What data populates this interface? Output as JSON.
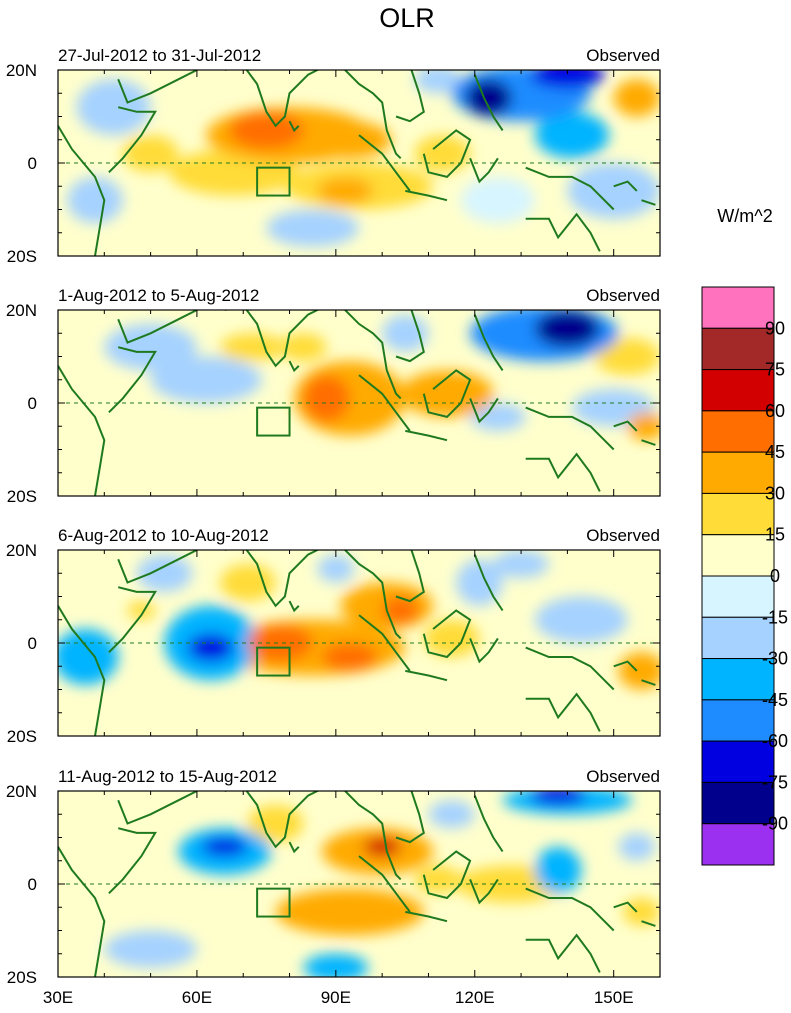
{
  "chart_data": {
    "type": "heatmap",
    "title": "OLR",
    "units": "W/m^2",
    "variable": "OLR anomaly",
    "x_ticks": [
      "30E",
      "60E",
      "90E",
      "120E",
      "150E"
    ],
    "y_ticks": [
      "20N",
      "0",
      "20S"
    ],
    "lon_range": [
      30,
      160
    ],
    "lat_range": [
      -20,
      20
    ],
    "colorbar": {
      "labels": [
        "90",
        "75",
        "60",
        "45",
        "30",
        "15",
        "0",
        "-15",
        "-30",
        "-45",
        "-60",
        "-75",
        "-90"
      ],
      "colors": [
        "#ff73be",
        "#a32828",
        "#d20000",
        "#ff6e00",
        "#ffaa00",
        "#ffdc37",
        "#ffffcc",
        "#d7f5ff",
        "#a5d2ff",
        "#00b4ff",
        "#1e8cff",
        "#0000e1",
        "#00008c",
        "#9b30f0"
      ]
    },
    "panels": [
      {
        "period": "27-Jul-2012 to 31-Jul-2012",
        "label": "Observed",
        "blobs": [
          {
            "lon": 80,
            "lat": 6,
            "rlon": 18,
            "rlat": 6,
            "value": 35
          },
          {
            "lon": 75,
            "lat": 7,
            "rlon": 8,
            "rlat": 4,
            "value": 48
          },
          {
            "lon": 93,
            "lat": 5,
            "rlon": 9,
            "rlat": 4,
            "value": 38
          },
          {
            "lon": 95,
            "lat": -5,
            "rlon": 16,
            "rlat": 5,
            "value": 28
          },
          {
            "lon": 92,
            "lat": -6,
            "rlon": 6,
            "rlat": 3,
            "value": 40
          },
          {
            "lon": 68,
            "lat": -2,
            "rlon": 14,
            "rlat": 5,
            "value": 18
          },
          {
            "lon": 113,
            "lat": 2,
            "rlon": 6,
            "rlat": 4,
            "value": 20
          },
          {
            "lon": 50,
            "lat": 2,
            "rlon": 6,
            "rlat": 4,
            "value": 16
          },
          {
            "lon": 155,
            "lat": 14,
            "rlon": 5,
            "rlat": 4,
            "value": 30
          },
          {
            "lon": 85,
            "lat": -14,
            "rlon": 10,
            "rlat": 4,
            "value": -18
          },
          {
            "lon": 130,
            "lat": 15,
            "rlon": 15,
            "rlat": 6,
            "value": -55
          },
          {
            "lon": 123,
            "lat": 14,
            "rlon": 5,
            "rlat": 4,
            "value": -78
          },
          {
            "lon": 140,
            "lat": 19,
            "rlon": 8,
            "rlat": 3,
            "value": -70
          },
          {
            "lon": 141,
            "lat": 6,
            "rlon": 8,
            "rlat": 5,
            "value": -42
          },
          {
            "lon": 112,
            "lat": 18,
            "rlon": 5,
            "rlat": 3,
            "value": -30
          },
          {
            "lon": 42,
            "lat": 12,
            "rlon": 8,
            "rlat": 6,
            "value": -18
          },
          {
            "lon": 38,
            "lat": -8,
            "rlon": 6,
            "rlat": 5,
            "value": -20
          },
          {
            "lon": 150,
            "lat": -6,
            "rlon": 10,
            "rlat": 6,
            "value": -20
          },
          {
            "lon": 125,
            "lat": -8,
            "rlon": 8,
            "rlat": 5,
            "value": -15
          }
        ]
      },
      {
        "period": "1-Aug-2012 to 5-Aug-2012",
        "label": "Observed",
        "blobs": [
          {
            "lon": 93,
            "lat": 1,
            "rlon": 12,
            "rlat": 8,
            "value": 38
          },
          {
            "lon": 88,
            "lat": 1,
            "rlon": 5,
            "rlat": 5,
            "value": 50
          },
          {
            "lon": 114,
            "lat": 2,
            "rlon": 10,
            "rlat": 5,
            "value": 30
          },
          {
            "lon": 72,
            "lat": 12,
            "rlon": 7,
            "rlat": 3,
            "value": 25
          },
          {
            "lon": 83,
            "lat": 12,
            "rlon": 5,
            "rlat": 3,
            "value": 22
          },
          {
            "lon": 153,
            "lat": 10,
            "rlon": 7,
            "rlat": 4,
            "value": 28
          },
          {
            "lon": 157,
            "lat": -5,
            "rlon": 4,
            "rlat": 3,
            "value": 40
          },
          {
            "lon": 40,
            "lat": 1,
            "rlon": 8,
            "rlat": 5,
            "value": 14
          },
          {
            "lon": 135,
            "lat": 15,
            "rlon": 16,
            "rlat": 6,
            "value": -50
          },
          {
            "lon": 140,
            "lat": 16,
            "rlon": 7,
            "rlat": 4,
            "value": -78
          },
          {
            "lon": 50,
            "lat": 12,
            "rlon": 10,
            "rlat": 5,
            "value": -18
          },
          {
            "lon": 62,
            "lat": 5,
            "rlon": 12,
            "rlat": 5,
            "value": -18
          },
          {
            "lon": 150,
            "lat": -1,
            "rlon": 9,
            "rlat": 4,
            "value": -25
          },
          {
            "lon": 125,
            "lat": -3,
            "rlon": 6,
            "rlat": 3,
            "value": -28
          },
          {
            "lon": 105,
            "lat": 15,
            "rlon": 5,
            "rlat": 4,
            "value": -18
          }
        ]
      },
      {
        "period": "6-Aug-2012 to 10-Aug-2012",
        "label": "Observed",
        "blobs": [
          {
            "lon": 85,
            "lat": -1,
            "rlon": 20,
            "rlat": 6,
            "value": 32
          },
          {
            "lon": 78,
            "lat": 0,
            "rlon": 7,
            "rlat": 4,
            "value": 48
          },
          {
            "lon": 93,
            "lat": -3,
            "rlon": 6,
            "rlat": 3,
            "value": 45
          },
          {
            "lon": 101,
            "lat": 8,
            "rlon": 10,
            "rlat": 5,
            "value": 35
          },
          {
            "lon": 104,
            "lat": 7,
            "rlon": 4,
            "rlat": 3,
            "value": 48
          },
          {
            "lon": 71,
            "lat": 13,
            "rlon": 6,
            "rlat": 4,
            "value": 22
          },
          {
            "lon": 115,
            "lat": 1,
            "rlon": 6,
            "rlat": 4,
            "value": 20
          },
          {
            "lon": 48,
            "lat": 7,
            "rlon": 3,
            "rlat": 2,
            "value": 25
          },
          {
            "lon": 156,
            "lat": -6,
            "rlon": 5,
            "rlat": 4,
            "value": 30
          },
          {
            "lon": 63,
            "lat": 0,
            "rlon": 10,
            "rlat": 8,
            "value": -35
          },
          {
            "lon": 63,
            "lat": -1,
            "rlon": 5,
            "rlat": 3,
            "value": -72
          },
          {
            "lon": 36,
            "lat": -3,
            "rlon": 7,
            "rlat": 6,
            "value": -40
          },
          {
            "lon": 143,
            "lat": 5,
            "rlon": 10,
            "rlat": 5,
            "value": -25
          },
          {
            "lon": 121,
            "lat": 13,
            "rlon": 5,
            "rlat": 5,
            "value": -28
          },
          {
            "lon": 130,
            "lat": 17,
            "rlon": 6,
            "rlat": 3,
            "value": -25
          },
          {
            "lon": 53,
            "lat": 15,
            "rlon": 6,
            "rlat": 4,
            "value": -18
          },
          {
            "lon": 90,
            "lat": 16,
            "rlon": 4,
            "rlat": 3,
            "value": -20
          }
        ]
      },
      {
        "period": "11-Aug-2012 to 15-Aug-2012",
        "label": "Observed",
        "blobs": [
          {
            "lon": 99,
            "lat": 7,
            "rlon": 12,
            "rlat": 5,
            "value": 42
          },
          {
            "lon": 100,
            "lat": 8,
            "rlon": 4,
            "rlat": 2,
            "value": 68
          },
          {
            "lon": 93,
            "lat": -6,
            "rlon": 16,
            "rlat": 5,
            "value": 30
          },
          {
            "lon": 88,
            "lat": -7,
            "rlon": 5,
            "rlat": 3,
            "value": 42
          },
          {
            "lon": 128,
            "lat": 0,
            "rlon": 12,
            "rlat": 4,
            "value": 22
          },
          {
            "lon": 77,
            "lat": 13,
            "rlon": 6,
            "rlat": 4,
            "value": 22
          },
          {
            "lon": 112,
            "lat": 1,
            "rlon": 5,
            "rlat": 3,
            "value": 18
          },
          {
            "lon": 156,
            "lat": -6,
            "rlon": 4,
            "rlat": 3,
            "value": 22
          },
          {
            "lon": 66,
            "lat": 7,
            "rlon": 10,
            "rlat": 5,
            "value": -40
          },
          {
            "lon": 66,
            "lat": 8,
            "rlon": 5,
            "rlat": 2,
            "value": -72
          },
          {
            "lon": 140,
            "lat": 18,
            "rlon": 14,
            "rlat": 3,
            "value": -40
          },
          {
            "lon": 138,
            "lat": 19,
            "rlon": 6,
            "rlat": 2,
            "value": -65
          },
          {
            "lon": 90,
            "lat": -18,
            "rlon": 7,
            "rlat": 3,
            "value": -40
          },
          {
            "lon": 138,
            "lat": 3,
            "rlon": 5,
            "rlat": 5,
            "value": -35
          },
          {
            "lon": 155,
            "lat": 8,
            "rlon": 4,
            "rlat": 3,
            "value": -25
          },
          {
            "lon": 50,
            "lat": -14,
            "rlon": 10,
            "rlat": 4,
            "value": -18
          },
          {
            "lon": 115,
            "lat": 15,
            "rlon": 5,
            "rlat": 3,
            "value": -18
          }
        ]
      }
    ]
  }
}
